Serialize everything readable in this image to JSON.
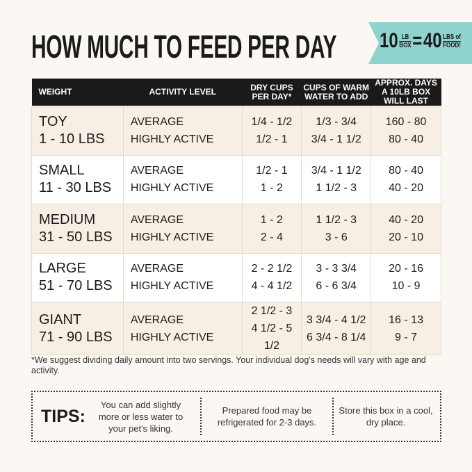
{
  "title": "HOW MUCH TO FEED PER DAY",
  "banner": {
    "n1": "10",
    "u1_top": "LB",
    "u1_bottom": "BOX",
    "eq": "=",
    "n2": "40",
    "u2_top": "LBS of",
    "u2_bottom": "FOOD!",
    "color": "#8fd3cf"
  },
  "table": {
    "headers": [
      "WEIGHT",
      "ACTIVITY LEVEL",
      "DRY CUPS PER DAY*",
      "CUPS OF WARM WATER TO ADD",
      "APPROX. DAYS A 10LB BOX WILL LAST"
    ],
    "rows": [
      {
        "size": "TOY",
        "range": "1 - 10 LBS",
        "l1": "AVERAGE",
        "l2": "HIGHLY ACTIVE",
        "dry": [
          "1/4 - 1/2",
          "1/2 - 1"
        ],
        "water": [
          "1/3 - 3/4",
          "3/4 - 1 1/2"
        ],
        "days": [
          "160 - 80",
          "80 - 40"
        ]
      },
      {
        "size": "SMALL",
        "range": "11 - 30 LBS",
        "l1": "AVERAGE",
        "l2": "HIGHLY ACTIVE",
        "dry": [
          "1/2 - 1",
          "1 - 2"
        ],
        "water": [
          "3/4 - 1 1/2",
          "1 1/2 - 3"
        ],
        "days": [
          "80 - 40",
          "40 - 20"
        ]
      },
      {
        "size": "MEDIUM",
        "range": "31 - 50 LBS",
        "l1": "AVERAGE",
        "l2": "HIGHLY ACTIVE",
        "dry": [
          "1 - 2",
          "2 - 4"
        ],
        "water": [
          "1 1/2 - 3",
          "3 - 6"
        ],
        "days": [
          "40 - 20",
          "20 - 10"
        ]
      },
      {
        "size": "LARGE",
        "range": "51 - 70 LBS",
        "l1": "AVERAGE",
        "l2": "HIGHLY ACTIVE",
        "dry": [
          "2 - 2 1/2",
          "4 - 4 1/2"
        ],
        "water": [
          "3 - 3 3/4",
          "6 - 6 3/4"
        ],
        "days": [
          "20 - 16",
          "10 - 9"
        ]
      },
      {
        "size": "GIANT",
        "range": "71 - 90 LBS",
        "l1": "AVERAGE",
        "l2": "HIGHLY ACTIVE",
        "dry": [
          "2 1/2 - 3",
          "4 1/2 - 5 1/2"
        ],
        "water": [
          "3 3/4 - 4 1/2",
          "6 3/4 - 8 1/4"
        ],
        "days": [
          "16 - 13",
          "9 - 7"
        ]
      }
    ]
  },
  "footnote": "*We suggest dividing daily amount into two servings. Your individual dog's needs will vary with age and activity.",
  "tips": {
    "label": "TIPS:",
    "items": [
      "You can add slightly more or less water to your pet's liking.",
      "Prepared food may be refrigerated for 2-3 days.",
      "Store this box in a cool, dry place."
    ]
  }
}
